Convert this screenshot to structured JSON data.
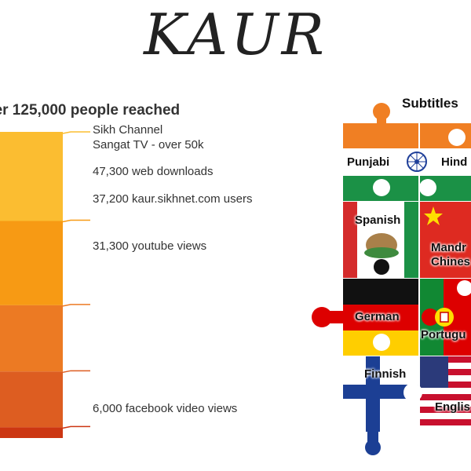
{
  "title": "KAUR",
  "reach_title": "ver 125,000 people reached",
  "chart_data": {
    "type": "bar",
    "title": "ver 125,000 people reached",
    "stacked": true,
    "categories": [
      "Sikh Channel Sangat TV",
      "web downloads",
      "kaur.sikhnet.com users",
      "youtube views",
      "facebook video views"
    ],
    "labels": [
      [
        "Sikh Channel",
        "Sangat TV - over 50k"
      ],
      [
        "47,300 web downloads"
      ],
      [
        "37,200 kaur.sikhnet.com users"
      ],
      [
        "31,300 youtube views"
      ],
      [
        "6,000 facebook video views"
      ]
    ],
    "values": [
      50000,
      47300,
      37200,
      31300,
      6000
    ],
    "colors": [
      "#fbbd31",
      "#f79a14",
      "#ec7a23",
      "#dd5d21",
      "#cc3612"
    ]
  },
  "subtitles": {
    "title": "Subtitles",
    "languages": [
      "Punjabi",
      "Hind",
      "Spanish",
      "Mandr",
      "Chines",
      "German",
      "Portugu",
      "Finnish",
      "Englis"
    ]
  }
}
